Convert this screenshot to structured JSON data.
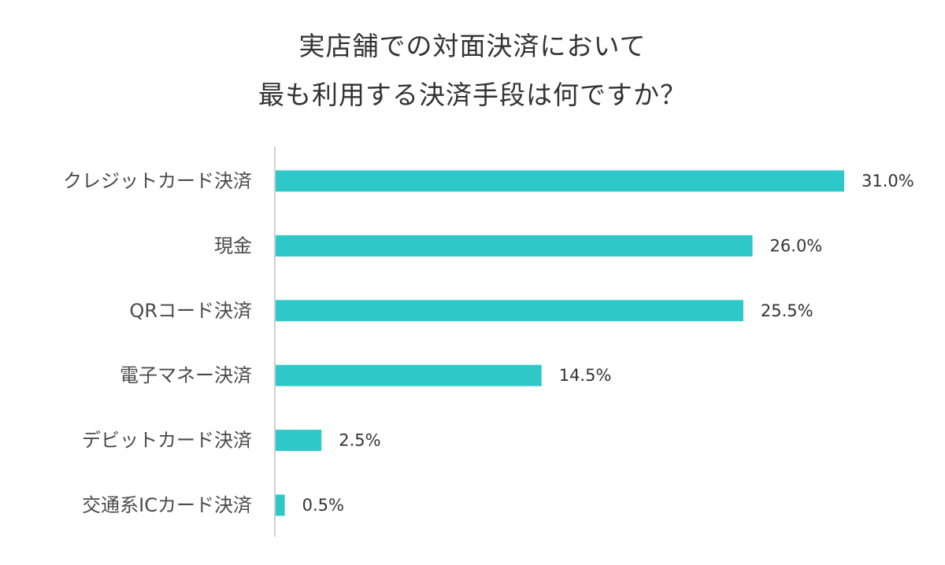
{
  "chart_data": {
    "type": "bar",
    "orientation": "horizontal",
    "title_lines": [
      "実店舗での対面決済において",
      "最も利用する決済手段は何ですか？"
    ],
    "categories": [
      "クレジットカード決済",
      "現金",
      "QRコード決済",
      "電子マネー決済",
      "デビットカード決済",
      "交通系ICカード決済"
    ],
    "values": [
      31.0,
      26.0,
      25.5,
      14.5,
      2.5,
      0.5
    ],
    "value_labels": [
      "31.0%",
      "26.0%",
      "25.5%",
      "14.5%",
      "2.5%",
      "0.5%"
    ],
    "unit": "%",
    "xlim": [
      0,
      31.0
    ],
    "grid": false,
    "legend": "none",
    "bar_color": "#2ec8c8",
    "axis_color": "#d0d0d0"
  }
}
